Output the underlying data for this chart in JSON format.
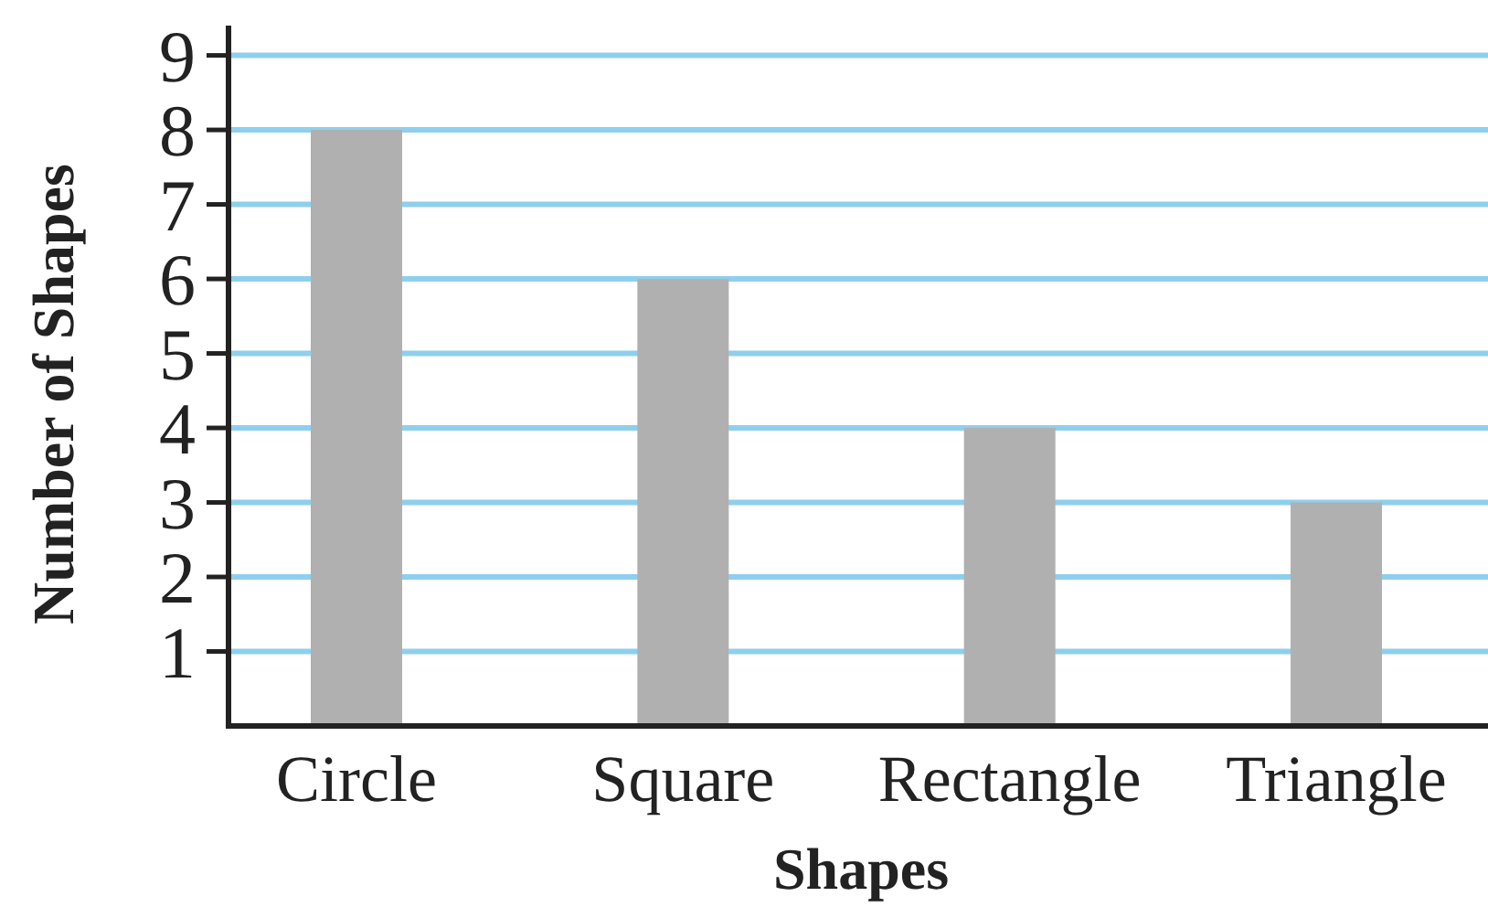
{
  "chart_data": {
    "type": "bar",
    "xlabel": "Shapes",
    "ylabel": "Number of Shapes",
    "categories": [
      "Circle",
      "Square",
      "Rectangle",
      "Triangle"
    ],
    "values": [
      8,
      6,
      4,
      3
    ],
    "color": "#b0b0b0",
    "ylim": [
      0,
      9.4
    ],
    "yticks": [
      1,
      2,
      3,
      4,
      5,
      6,
      7,
      8,
      9
    ],
    "grid": "y"
  }
}
